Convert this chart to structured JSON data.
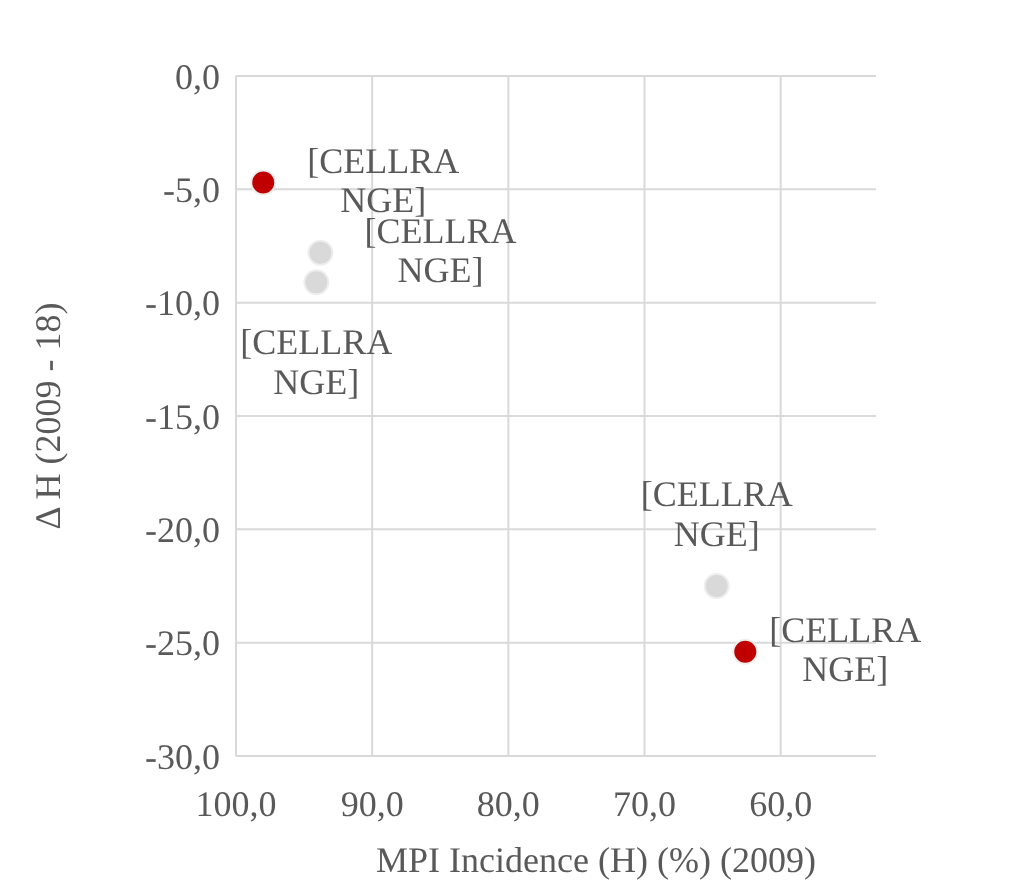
{
  "chart_data": {
    "type": "scatter",
    "xlabel": "MPI Incidence (H) (%) (2009)",
    "ylabel": "Δ H (2009 - 18)",
    "series": [
      {
        "color": "#d9d9d9",
        "x": [
          93.8,
          94.1,
          64.7
        ],
        "values": [
          -7.8,
          -9.1,
          -22.5
        ]
      },
      {
        "color": "#c00000",
        "x": [
          98.0,
          62.6
        ],
        "values": [
          -4.7,
          -25.4
        ]
      }
    ],
    "xlim": [
      100,
      53
    ],
    "xticks": [
      {
        "value": 100,
        "label": "100,0"
      },
      {
        "value": 90,
        "label": "90,0"
      },
      {
        "value": 80,
        "label": "80,0"
      },
      {
        "value": 70,
        "label": "70,0"
      },
      {
        "value": 60,
        "label": "60,0"
      }
    ],
    "ylim": [
      -30,
      0
    ],
    "yticks": [
      {
        "value": 0,
        "label": "0,0"
      },
      {
        "value": -5,
        "label": "-5,0"
      },
      {
        "value": -10,
        "label": "-10,0"
      },
      {
        "value": -15,
        "label": "-15,0"
      },
      {
        "value": -20,
        "label": "-20,0"
      },
      {
        "value": -25,
        "label": "-25,0"
      },
      {
        "value": -30,
        "label": "-30,0"
      }
    ],
    "grid": true,
    "marker": "circle",
    "annotations": [
      {
        "text": "[CELLRANGE]",
        "x": 93.8,
        "y": -7.8
      },
      {
        "text": "[CELLRANGE]",
        "x": 98.0,
        "y": -4.7
      },
      {
        "text": "[CELLRANGE]",
        "x": 94.1,
        "y": -9.1
      },
      {
        "text": "[CELLRANGE]",
        "x": 64.7,
        "y": -22.5
      },
      {
        "text": "[CELLRANGE]",
        "x": 62.6,
        "y": -25.4
      }
    ]
  }
}
